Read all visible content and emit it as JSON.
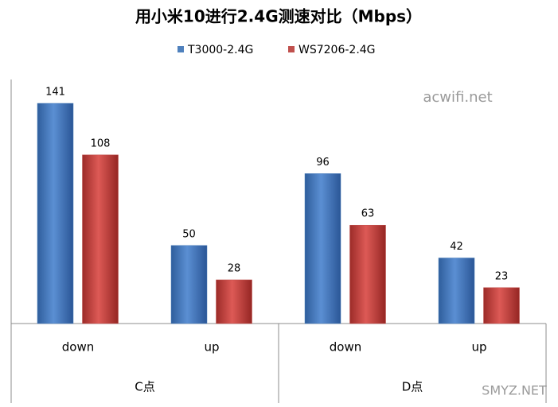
{
  "chart_data": {
    "type": "bar",
    "title": "用小米10进行2.4G测速对比（Mbps）",
    "categories": [
      "down",
      "up",
      "down",
      "up"
    ],
    "groups": [
      "C点",
      "D点"
    ],
    "series": [
      {
        "name": "T3000-2.4G",
        "color": "#4f81bd",
        "values": [
          141,
          50,
          96,
          42
        ]
      },
      {
        "name": "WS7206-2.4G",
        "color": "#c0504d",
        "values": [
          108,
          28,
          63,
          23
        ]
      }
    ],
    "annotations": [
      "acwifi.net",
      "SMYZ.NET"
    ]
  }
}
